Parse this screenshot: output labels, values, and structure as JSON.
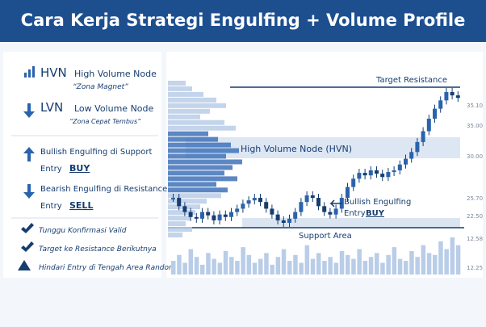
{
  "header": {
    "title": "Cara Kerja Strategi Engulfing + Volume Profile"
  },
  "legend": [
    {
      "code": "HVN",
      "label": "High Volume Node",
      "note": "“Zona Magnet”"
    },
    {
      "code": "LVN",
      "label": "Low Volume Node",
      "note": "“Zona Cepat Tembus”"
    },
    {
      "label": "Bullish Engulfing di Support",
      "entry": "Entry",
      "action": "BUY"
    },
    {
      "label": "Bearish Engulfing di Resistance",
      "entry": "Entry",
      "action": "SELL"
    }
  ],
  "checklist": [
    "Tunggu Konfirmasi Valid",
    "Target ke Resistance Berikutnya",
    "Hindari Entry di Tengah Area Random"
  ],
  "chart": {
    "annotations": {
      "target": "Target Resistance",
      "hvn": "High Volume Node (HVN)",
      "signal": "Bullish Engulfing",
      "entry": "Entry",
      "action": "BUY",
      "support": "Support Area"
    },
    "axis_labels": [
      "35.10",
      "35.00",
      "30.00",
      "25.70",
      "22.50",
      "12.58",
      "12.25"
    ],
    "closes": [
      55,
      45,
      38,
      32,
      30,
      38,
      34,
      28,
      35,
      32,
      38,
      42,
      48,
      52,
      55,
      50,
      42,
      35,
      28,
      25,
      30,
      38,
      50,
      58,
      55,
      45,
      38,
      35,
      42,
      55,
      68,
      78,
      85,
      82,
      88,
      84,
      80,
      86,
      88,
      95,
      102,
      110,
      122,
      135,
      150,
      162,
      172,
      182,
      178,
      175
    ],
    "volumes": [
      14,
      20,
      12,
      26,
      18,
      10,
      22,
      16,
      12,
      24,
      18,
      14,
      28,
      20,
      12,
      16,
      22,
      10,
      18,
      26,
      14,
      20,
      12,
      30,
      16,
      22,
      14,
      18,
      12,
      24,
      20,
      16,
      26,
      14,
      18,
      22,
      12,
      20,
      28,
      16,
      14,
      24,
      18,
      30,
      22,
      20,
      34,
      26,
      38,
      30
    ],
    "profile": [
      22,
      30,
      44,
      60,
      72,
      52,
      40,
      70,
      84,
      50,
      62,
      78,
      88,
      72,
      92,
      80,
      70,
      86,
      60,
      74,
      66,
      48,
      40,
      34,
      28,
      22,
      30,
      18
    ]
  }
}
